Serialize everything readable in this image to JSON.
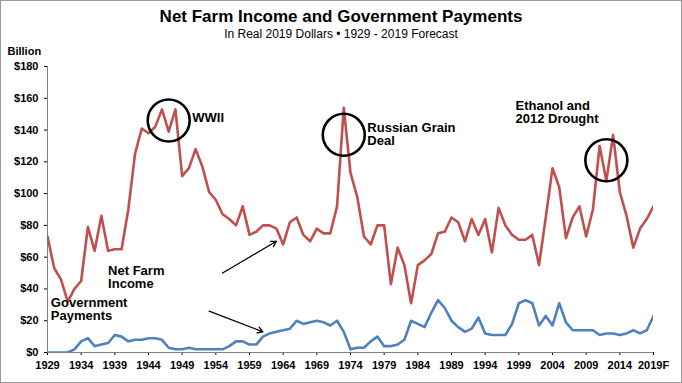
{
  "chart_data": {
    "type": "line",
    "title": "Net Farm Income and Government Payments",
    "subtitle": "In Real 2019 Dollars  •  1929 - 2019 Forecast",
    "y_label": "Billion",
    "x": [
      1929,
      1930,
      1931,
      1932,
      1933,
      1934,
      1935,
      1936,
      1937,
      1938,
      1939,
      1940,
      1941,
      1942,
      1943,
      1944,
      1945,
      1946,
      1947,
      1948,
      1949,
      1950,
      1951,
      1952,
      1953,
      1954,
      1955,
      1956,
      1957,
      1958,
      1959,
      1960,
      1961,
      1962,
      1963,
      1964,
      1965,
      1966,
      1967,
      1968,
      1969,
      1970,
      1971,
      1972,
      1973,
      1974,
      1975,
      1976,
      1977,
      1978,
      1979,
      1980,
      1981,
      1982,
      1983,
      1984,
      1985,
      1986,
      1987,
      1988,
      1989,
      1990,
      1991,
      1992,
      1993,
      1994,
      1995,
      1996,
      1997,
      1998,
      1999,
      2000,
      2001,
      2002,
      2003,
      2004,
      2005,
      2006,
      2007,
      2008,
      2009,
      2010,
      2011,
      2012,
      2013,
      2014,
      2015,
      2016,
      2017,
      2018,
      2019
    ],
    "series": [
      {
        "name": "Net Farm Income",
        "color": "#c0504d",
        "values": [
          73,
          53,
          46,
          32,
          40,
          45,
          79,
          64,
          86,
          64,
          65,
          65,
          90,
          125,
          141,
          138,
          142,
          153,
          139,
          153,
          111,
          116,
          128,
          117,
          101,
          96,
          87,
          84,
          80,
          92,
          74,
          76,
          80,
          80,
          78,
          68,
          82,
          85,
          74,
          70,
          78,
          75,
          75,
          92,
          154,
          113,
          98,
          73,
          68,
          80,
          80,
          43,
          66,
          55,
          31,
          55,
          58,
          62,
          75,
          76,
          85,
          82,
          70,
          84,
          74,
          84,
          63,
          91,
          80,
          74,
          71,
          71,
          74,
          55,
          85,
          116,
          104,
          72,
          85,
          92,
          73,
          90,
          130,
          108,
          137,
          101,
          86,
          66,
          78,
          84,
          92
        ]
      },
      {
        "name": "Government Payments",
        "color": "#4f81bd",
        "values": [
          0,
          0,
          0,
          0,
          2,
          7,
          9,
          4,
          5,
          6,
          11,
          10,
          7,
          8,
          8,
          9,
          9,
          8,
          3,
          2,
          2,
          3,
          2,
          2,
          2,
          2,
          2,
          4,
          7,
          7,
          5,
          5,
          10,
          12,
          13,
          14,
          15,
          20,
          18,
          19,
          20,
          19,
          17,
          20,
          13,
          2,
          3,
          3,
          7,
          10,
          4,
          4,
          5,
          8,
          20,
          18,
          16,
          25,
          33,
          28,
          20,
          16,
          13,
          15,
          22,
          12,
          11,
          11,
          11,
          18,
          31,
          33,
          31,
          17,
          23,
          17,
          31,
          19,
          14,
          14,
          14,
          14,
          11,
          12,
          12,
          11,
          12,
          14,
          12,
          14,
          23
        ]
      }
    ],
    "xlim": [
      1929,
      2019
    ],
    "xticks": [
      1929,
      1934,
      1939,
      1944,
      1949,
      1954,
      1959,
      1964,
      1969,
      1974,
      1979,
      1984,
      1989,
      1994,
      1999,
      2004,
      2009,
      2014,
      {
        "value": 2019,
        "label": "2019F"
      }
    ],
    "ylim": [
      0,
      180
    ],
    "yticks": [
      {
        "value": 0,
        "label": "$0"
      },
      {
        "value": 20,
        "label": "$20"
      },
      {
        "value": 40,
        "label": "$40"
      },
      {
        "value": 60,
        "label": "$60"
      },
      {
        "value": 80,
        "label": "$80"
      },
      {
        "value": 100,
        "label": "$100"
      },
      {
        "value": 120,
        "label": "$120"
      },
      {
        "value": 140,
        "label": "$140"
      },
      {
        "value": 160,
        "label": "$160"
      },
      {
        "value": 180,
        "label": "$180"
      }
    ],
    "grid": false,
    "annotations": [
      {
        "text": "WWII",
        "x": 1950.5,
        "y": 148,
        "circle": {
          "x": 1947,
          "y": 146
        }
      },
      {
        "text": "Russian Grain Deal",
        "x": 1976.5,
        "y": 137,
        "circle": {
          "x": 1973,
          "y": 137
        }
      },
      {
        "text": "Ethanol and 2012 Drought",
        "x": 1998.5,
        "y": 151,
        "circle": {
          "x": 2012,
          "y": 121
        }
      },
      {
        "text": "Net Farm Income",
        "x": 1938,
        "y": 47,
        "arrow": {
          "x1": 1955,
          "y1": 50,
          "x2": 1963,
          "y2": 70
        }
      },
      {
        "text": "Government Payments",
        "x": 1929.5,
        "y": 27,
        "arrow": {
          "x1": 1953,
          "y1": 26,
          "x2": 1961,
          "y2": 13
        }
      }
    ]
  }
}
